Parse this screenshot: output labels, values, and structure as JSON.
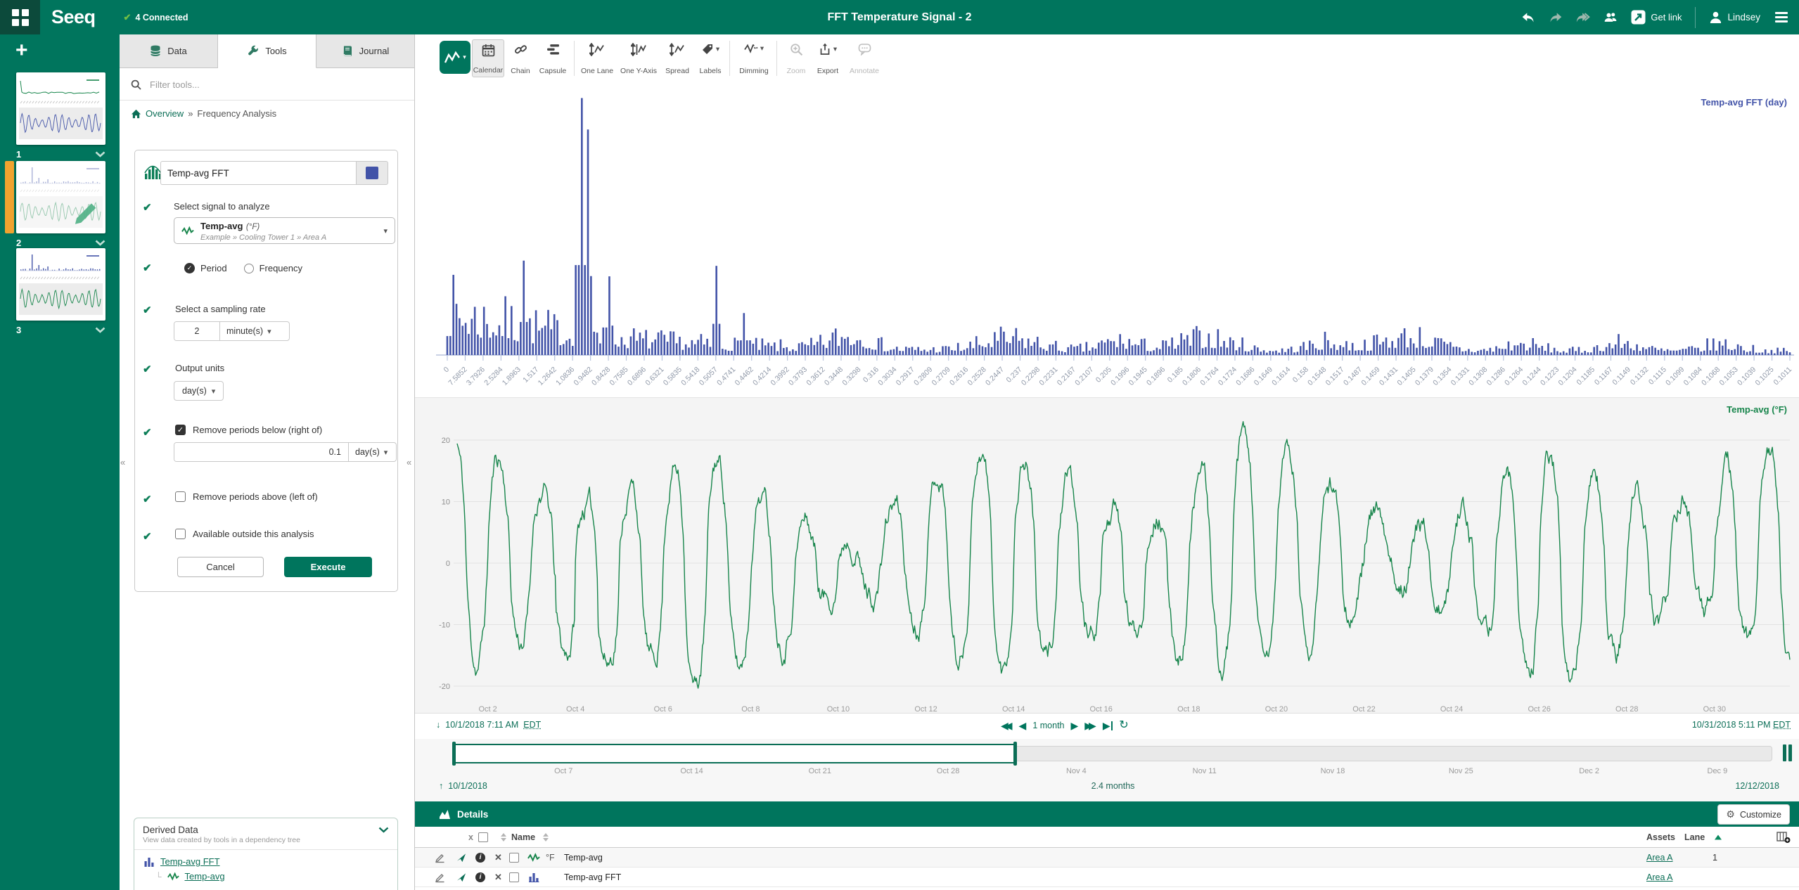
{
  "topbar": {
    "connected_label": "4 Connected",
    "title": "FFT Temperature Signal - 2",
    "get_link_label": "Get link",
    "user_name": "Lindsey"
  },
  "worksheets": {
    "add_label": "+",
    "items": [
      {
        "label": "1",
        "top_type": "decay",
        "top_color": "#17854b",
        "bottom_color": "#4253a8",
        "active": false,
        "editing": false
      },
      {
        "label": "2",
        "top_type": "fft",
        "top_color": "#4253a8",
        "bottom_color": "#17854b",
        "active": true,
        "editing": true
      },
      {
        "label": "3",
        "top_type": "fft",
        "top_color": "#4253a8",
        "bottom_color": "#17854b",
        "active": false,
        "editing": false
      }
    ]
  },
  "panel": {
    "tabs": [
      {
        "label": "Data"
      },
      {
        "label": "Tools"
      },
      {
        "label": "Journal"
      }
    ],
    "active_tab": "Tools",
    "filter_placeholder": "Filter tools...",
    "breadcrumb": {
      "root": "Overview",
      "separator": "»",
      "current": "Frequency Analysis"
    },
    "tool": {
      "name": "Temp-avg FFT",
      "swatch_color": "#4253a8",
      "signal_step_label": "Select signal to analyze",
      "signal_name": "Temp-avg",
      "signal_unit": "(°F)",
      "signal_path": "Example » Cooling Tower 1 » Area A",
      "radio_period": "Period",
      "radio_frequency": "Frequency",
      "radio_selected": "Period",
      "sampling_label": "Select a sampling rate",
      "sampling_value": "2",
      "sampling_unit": "minute(s)",
      "output_label": "Output units",
      "output_unit": "day(s)",
      "below_label": "Remove periods below (right of)",
      "below_checked": true,
      "below_value": "0.1",
      "below_unit": "day(s)",
      "above_label": "Remove periods above (left of)",
      "above_checked": false,
      "outside_label": "Available outside this analysis",
      "outside_checked": false,
      "cancel_label": "Cancel",
      "execute_label": "Execute"
    },
    "derived": {
      "title": "Derived Data",
      "subtitle": "View data created by tools in a dependency tree",
      "items": [
        {
          "name": "Temp-avg FFT",
          "icon": "bar-chart"
        },
        {
          "name": "Temp-avg",
          "icon": "signal"
        }
      ]
    }
  },
  "toolbar": {
    "items": [
      {
        "label": "Calendar",
        "active": true
      },
      {
        "label": "Chain"
      },
      {
        "label": "Capsule"
      },
      {
        "label": "One Lane"
      },
      {
        "label": "One Y-Axis"
      },
      {
        "label": "Spread"
      },
      {
        "label": "Labels",
        "caret": true
      },
      {
        "label": "Dimming",
        "caret": true
      },
      {
        "label": "Zoom",
        "disabled": true
      },
      {
        "label": "Export",
        "caret": true
      },
      {
        "label": "Annotate",
        "disabled": true
      }
    ]
  },
  "chart_data": [
    {
      "type": "bar",
      "title": "Temp-avg FFT (day)",
      "series_color": "#4253a8",
      "axis_color": "#b9c4de",
      "tick_label_color": "#8f98a8",
      "x_tick_labels": [
        "0",
        "7.5852",
        "3.7926",
        "2.5284",
        "1.8963",
        "1.517",
        "1.2642",
        "1.0836",
        "0.9482",
        "0.8428",
        "0.7585",
        "0.6896",
        "0.6321",
        "0.5835",
        "0.5418",
        "0.5057",
        "0.4741",
        "0.4462",
        "0.4214",
        "0.3992",
        "0.3793",
        "0.3612",
        "0.3448",
        "0.3298",
        "0.316",
        "0.3034",
        "0.2917",
        "0.2809",
        "0.2709",
        "0.2616",
        "0.2528",
        "0.2447",
        "0.237",
        "0.2298",
        "0.2231",
        "0.2167",
        "0.2107",
        "0.205",
        "0.1996",
        "0.1945",
        "0.1896",
        "0.185",
        "0.1806",
        "0.1764",
        "0.1724",
        "0.1686",
        "0.1649",
        "0.1614",
        "0.158",
        "0.1548",
        "0.1517",
        "0.1487",
        "0.1459",
        "0.1431",
        "0.1405",
        "0.1379",
        "0.1354",
        "0.1331",
        "0.1308",
        "0.1286",
        "0.1264",
        "0.1244",
        "0.1223",
        "0.1204",
        "0.1185",
        "0.1167",
        "0.1149",
        "0.1132",
        "0.1115",
        "0.1099",
        "0.1084",
        "0.1068",
        "0.1053",
        "0.1039",
        "0.1025",
        "0.1011"
      ],
      "bars_model": {
        "count": 440,
        "seed": 7,
        "envelope_base": 0.3,
        "envelope_decay": 9,
        "floor": 0.028,
        "clusters": [
          {
            "f": 0.3,
            "w": 0.02,
            "a": 0.1
          },
          {
            "f": 0.42,
            "w": 0.03,
            "a": 0.08
          },
          {
            "f": 0.5,
            "w": 0.02,
            "a": 0.07
          },
          {
            "f": 0.565,
            "w": 0.03,
            "a": 0.09
          },
          {
            "f": 0.655,
            "w": 0.02,
            "a": 0.06
          },
          {
            "f": 0.715,
            "w": 0.03,
            "a": 0.1
          },
          {
            "f": 0.8,
            "w": 0.02,
            "a": 0.05
          },
          {
            "f": 0.875,
            "w": 0.02,
            "a": 0.06
          },
          {
            "f": 0.95,
            "w": 0.02,
            "a": 0.05
          }
        ],
        "peaks": [
          {
            "f": 0.0995,
            "h": 0.98
          },
          {
            "f": 0.104,
            "h": 0.86
          },
          {
            "f": 0.057,
            "h": 0.36
          },
          {
            "f": 0.12,
            "h": 0.3
          },
          {
            "f": 0.2,
            "h": 0.34
          },
          {
            "f": 0.222,
            "h": 0.16
          }
        ]
      }
    },
    {
      "type": "line",
      "title": "Temp-avg (°F)",
      "series_color": "#17854b",
      "ylim": [
        -25,
        25
      ],
      "yticks": [
        20,
        10,
        0,
        -10,
        -20
      ],
      "x_tick_labels": [
        "Oct 2",
        "Oct 4",
        "Oct 6",
        "Oct 8",
        "Oct 10",
        "Oct 12",
        "Oct 14",
        "Oct 16",
        "Oct 18",
        "Oct 20",
        "Oct 22",
        "Oct 24",
        "Oct 26",
        "Oct 28",
        "Oct 30"
      ],
      "x_range_days": 30.42,
      "wave_model": {
        "step": 0.02,
        "seed": 11,
        "phase": 0.3,
        "amp_base": 13,
        "amp_mod1": [
          5.5,
          6.3,
          2.1
        ],
        "amp_mod2": [
          2.5,
          13,
          0.5
        ],
        "offset_mod": [
          1.5,
          9.5,
          0.8
        ],
        "shape_exp": 0.65,
        "noise": 0.9,
        "dips": [
          {
            "t": 2.8,
            "w": 0.9,
            "a": -7
          }
        ],
        "clamp": [
          -22.6,
          23.2
        ]
      }
    }
  ],
  "timebar": {
    "display_start": "10/1/2018 7:11 AM",
    "display_start_tz": "EDT",
    "display_end": "10/31/2018 5:11 PM",
    "display_end_tz": "EDT",
    "step_label": "1 month",
    "investigate_start": "10/1/2018",
    "investigate_end": "12/12/2018",
    "investigate_span": "2.4 months",
    "slider_ticks": [
      "Oct 7",
      "Oct 14",
      "Oct 21",
      "Oct 28",
      "Nov 4",
      "Nov 11",
      "Nov 18",
      "Nov 25",
      "Dec 2",
      "Dec 9"
    ],
    "selected_fraction": [
      0.0,
      0.426
    ]
  },
  "details": {
    "header": "Details",
    "customize_label": "Customize",
    "name_col": "Name",
    "remove_col": "x",
    "assets_col": "Assets",
    "lane_col": "Lane",
    "rows": [
      {
        "unit": "°F",
        "name": "Temp-avg",
        "asset": "Area A",
        "lane": "1",
        "icon": "signal",
        "color": "#17854b"
      },
      {
        "unit": "",
        "name": "Temp-avg FFT",
        "asset": "Area A",
        "lane": "",
        "icon": "bar-chart",
        "color": "#4253a8"
      }
    ]
  },
  "colors": {
    "brand_green": "#00755d",
    "brand_dark": "#0c4a3b",
    "connected_check": "#72bf44",
    "accent_check": "#0b7d57",
    "fft_blue": "#4253a8",
    "signal_green": "#17854b",
    "active_worksheet_orange": "#f0a32f"
  }
}
